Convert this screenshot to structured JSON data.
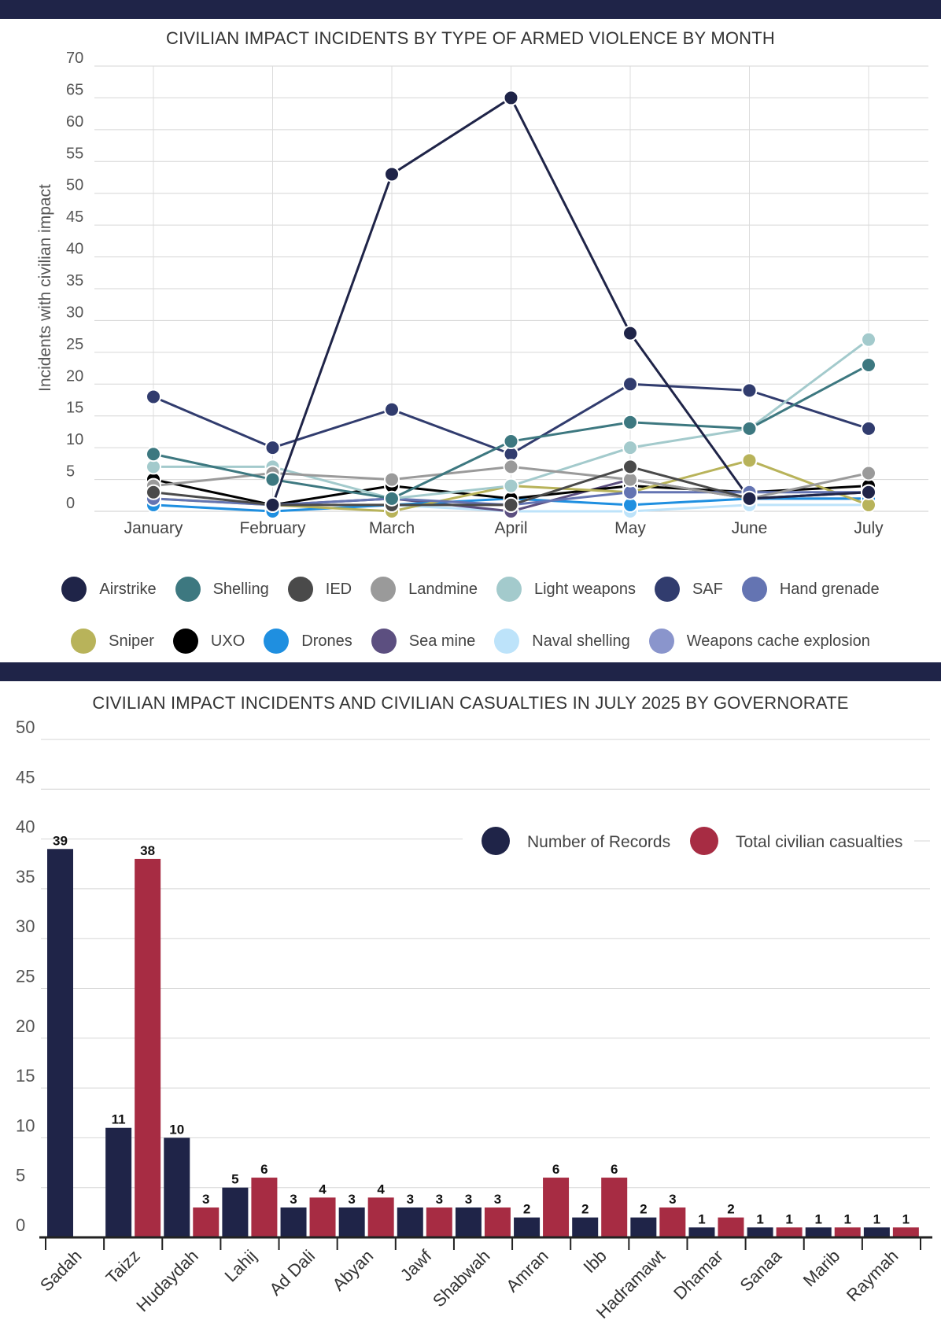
{
  "chart_data": [
    {
      "type": "line",
      "title": "CIVILIAN IMPACT INCIDENTS BY TYPE OF ARMED VIOLENCE BY MONTH",
      "xlabel": "",
      "ylabel": "Incidents with civilian impact",
      "ylim": [
        0,
        70
      ],
      "yticks": [
        0,
        5,
        10,
        15,
        20,
        25,
        30,
        35,
        40,
        45,
        50,
        55,
        60,
        65,
        70
      ],
      "grid": true,
      "legend_position": "bottom",
      "categories": [
        "January",
        "February",
        "March",
        "April",
        "May",
        "June",
        "July"
      ],
      "series": [
        {
          "name": "Airstrike",
          "color": "#1f2448",
          "values": [
            null,
            1,
            53,
            65,
            28,
            2,
            3
          ]
        },
        {
          "name": "Shelling",
          "color": "#3d7880",
          "values": [
            9,
            5,
            2,
            11,
            14,
            13,
            23
          ]
        },
        {
          "name": "IED",
          "color": "#4a4a4a",
          "values": [
            3,
            1,
            1,
            1,
            7,
            2,
            3
          ]
        },
        {
          "name": "Landmine",
          "color": "#9a9a9a",
          "values": [
            4,
            6,
            5,
            7,
            5,
            2,
            6
          ]
        },
        {
          "name": "Light weapons",
          "color": "#a3cacc",
          "values": [
            7,
            7,
            2,
            4,
            10,
            13,
            27
          ]
        },
        {
          "name": "SAF",
          "color": "#313c6e",
          "values": [
            18,
            10,
            16,
            9,
            20,
            19,
            13
          ]
        },
        {
          "name": "Hand grenade",
          "color": "#6474b2",
          "values": [
            2,
            1,
            2,
            1,
            3,
            3,
            3
          ]
        },
        {
          "name": "Sniper",
          "color": "#b8b35a",
          "values": [
            2,
            1,
            0,
            4,
            3,
            8,
            1
          ]
        },
        {
          "name": "UXO",
          "color": "#000000",
          "values": [
            5,
            1,
            4,
            2,
            4,
            3,
            4
          ]
        },
        {
          "name": "Drones",
          "color": "#1f8fe0",
          "values": [
            1,
            0,
            1,
            2,
            1,
            2,
            2
          ]
        },
        {
          "name": "Sea mine",
          "color": "#5c4f80",
          "values": [
            null,
            1,
            2,
            0,
            5,
            2,
            2
          ]
        },
        {
          "name": "Naval shelling",
          "color": "#bde3fa",
          "values": [
            null,
            0,
            1,
            0,
            0,
            1,
            1
          ]
        },
        {
          "name": "Weapons cache explosion",
          "color": "#8a95cc",
          "values": [
            null,
            null,
            null,
            0,
            null,
            null,
            null
          ]
        }
      ]
    },
    {
      "type": "bar",
      "title": "CIVILIAN IMPACT INCIDENTS AND CIVILIAN CASUALTIES IN JULY 2025 BY GOVERNORATE",
      "xlabel": "",
      "ylabel": "",
      "ylim": [
        0,
        50
      ],
      "yticks": [
        0,
        5,
        10,
        15,
        20,
        25,
        30,
        35,
        40,
        45,
        50
      ],
      "grid": true,
      "legend_position": "top-right",
      "categories": [
        "Sadah",
        "Taizz",
        "Hudaydah",
        "Lahij",
        "Ad Dali",
        "Abyan",
        "Jawf",
        "Shabwah",
        "Amran",
        "Ibb",
        "Hadramawt",
        "Dhamar",
        "Sanaa",
        "Marib",
        "Raymah"
      ],
      "series": [
        {
          "name": "Number of Records",
          "color": "#1f2448",
          "values": [
            39,
            11,
            10,
            5,
            3,
            3,
            3,
            3,
            2,
            2,
            2,
            1,
            1,
            1,
            1
          ]
        },
        {
          "name": "Total civilian casualties",
          "color": "#a72c43",
          "values": [
            null,
            38,
            3,
            6,
            4,
            4,
            3,
            3,
            6,
            6,
            3,
            2,
            1,
            1,
            1
          ]
        }
      ]
    }
  ]
}
